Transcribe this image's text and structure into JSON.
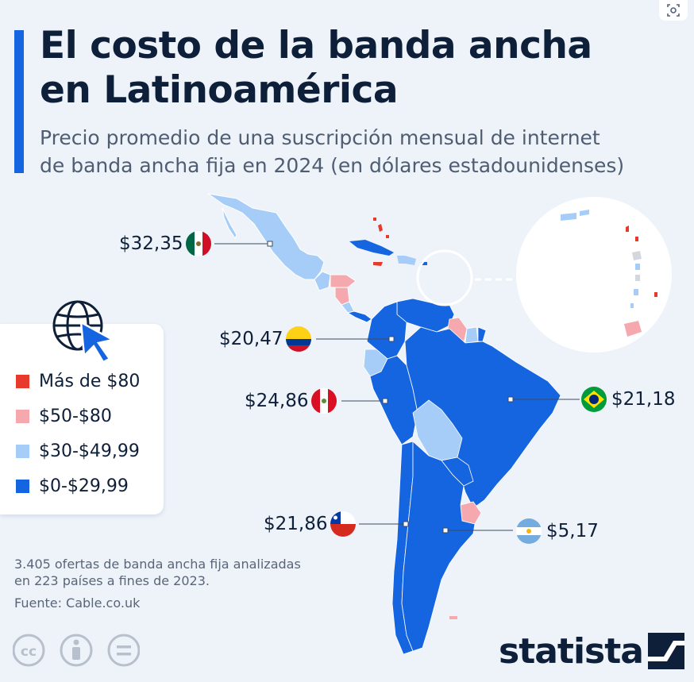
{
  "header": {
    "title_line1": "El costo de la banda ancha",
    "title_line2": "en Latinoamérica",
    "subtitle_line1": "Precio promedio de una suscripción mensual de internet",
    "subtitle_line2": "de banda ancha fija en 2024 (en dólares estadounidenses)"
  },
  "legend": {
    "items": [
      {
        "label": "Más de $80",
        "color": "#e83a2c"
      },
      {
        "label": "$50-$80",
        "color": "#f5a8ad"
      },
      {
        "label": "$30-$49,99",
        "color": "#a6cdf7"
      },
      {
        "label": "$0-$29,99",
        "color": "#1565e0"
      }
    ]
  },
  "callouts": {
    "mexico": {
      "price": "$32,35",
      "flag": "mexico-flag"
    },
    "colombia": {
      "price": "$20,47",
      "flag": "colombia-flag"
    },
    "peru": {
      "price": "$24,86",
      "flag": "peru-flag"
    },
    "brazil": {
      "price": "$21,18",
      "flag": "brazil-flag"
    },
    "chile": {
      "price": "$21,86",
      "flag": "chile-flag"
    },
    "argentina": {
      "price": "$5,17",
      "flag": "argentina-flag"
    }
  },
  "footer": {
    "note_line1": "3.405 ofertas de banda ancha fija analizadas",
    "note_line2": "en 223 países a fines de 2023.",
    "source": "Fuente: Cable.co.uk",
    "brand": "statista"
  },
  "colors": {
    "over80": "#e83a2c",
    "from50to80": "#f5a8ad",
    "from30to50": "#a6cdf7",
    "under30": "#1565e0",
    "accent": "#1565e0",
    "background": "#eef3fa"
  }
}
